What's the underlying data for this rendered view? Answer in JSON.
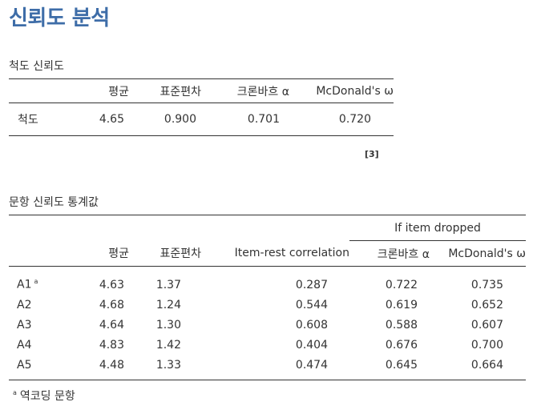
{
  "page": {
    "title": "신뢰도 분석"
  },
  "scale_reliability": {
    "caption": "척도 신뢰도",
    "headers": [
      "",
      "평균",
      "표준편차",
      "크론바흐 α",
      "McDonald's ω"
    ],
    "rows": [
      {
        "label": "척도",
        "mean": "4.65",
        "sd": "0.900",
        "alpha": "0.701",
        "omega": "0.720"
      }
    ],
    "reference": "[3]"
  },
  "item_reliability": {
    "caption": "문항 신뢰도 통계값",
    "group_header": "If item dropped",
    "headers": [
      "",
      "평균",
      "표준편차",
      "Item-rest correlation",
      "크론바흐 α",
      "McDonald's ω"
    ],
    "rows": [
      {
        "label": "A1",
        "mark": "a",
        "mean": "4.63",
        "sd": "1.37",
        "irc": "0.287",
        "alpha": "0.722",
        "omega": "0.735"
      },
      {
        "label": "A2",
        "mark": "",
        "mean": "4.68",
        "sd": "1.24",
        "irc": "0.544",
        "alpha": "0.619",
        "omega": "0.652"
      },
      {
        "label": "A3",
        "mark": "",
        "mean": "4.64",
        "sd": "1.30",
        "irc": "0.608",
        "alpha": "0.588",
        "omega": "0.607"
      },
      {
        "label": "A4",
        "mark": "",
        "mean": "4.83",
        "sd": "1.42",
        "irc": "0.404",
        "alpha": "0.676",
        "omega": "0.700"
      },
      {
        "label": "A5",
        "mark": "",
        "mean": "4.48",
        "sd": "1.33",
        "irc": "0.474",
        "alpha": "0.645",
        "omega": "0.664"
      }
    ],
    "footnote": {
      "mark": "a",
      "text": "역코딩 문항"
    }
  }
}
